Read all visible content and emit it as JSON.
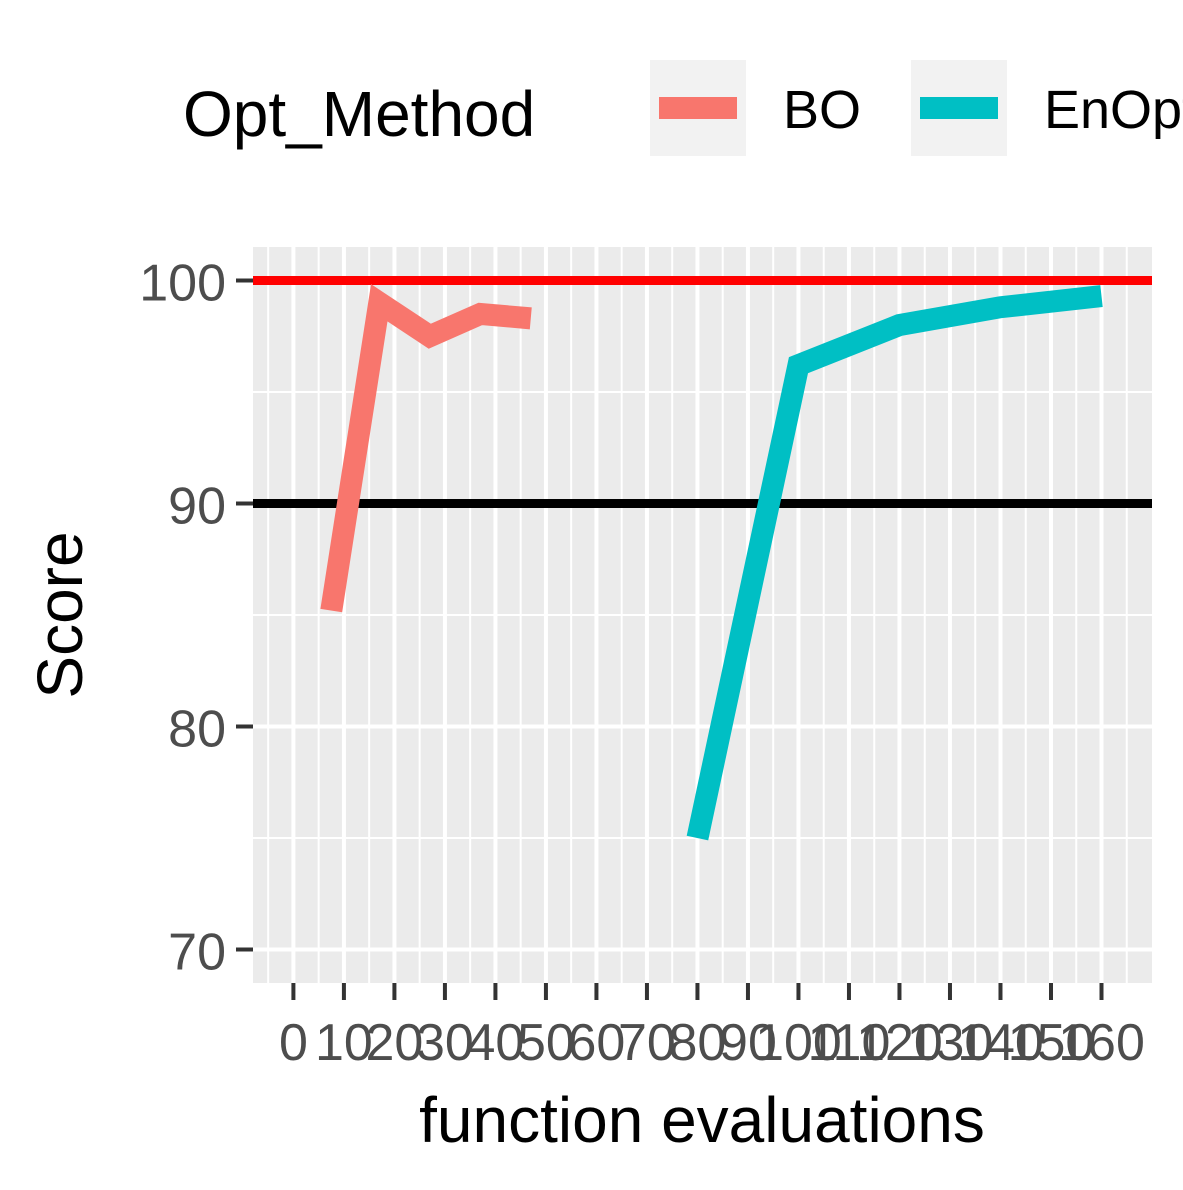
{
  "chart_data": {
    "type": "line",
    "title": "",
    "xlabel": "function evaluations",
    "ylabel": "Score",
    "xlim": [
      -8,
      170
    ],
    "ylim": [
      68.5,
      101.5
    ],
    "x_ticks": [
      0,
      10,
      20,
      30,
      40,
      50,
      60,
      70,
      80,
      90,
      100,
      110,
      120,
      130,
      140,
      150,
      160
    ],
    "x_tick_labels": [
      "0",
      "10",
      "20",
      "30",
      "40",
      "50",
      "60",
      "70",
      "80",
      "90",
      "100",
      "110",
      "120",
      "130",
      "140",
      "150",
      "160"
    ],
    "y_ticks": [
      70,
      80,
      90,
      100
    ],
    "y_tick_labels": [
      "70",
      "80",
      "90",
      "100"
    ],
    "grid": true,
    "legend": {
      "title": "Opt_Method",
      "position": "top",
      "entries": [
        "BO",
        "EnOpt"
      ]
    },
    "series": [
      {
        "name": "BO",
        "color": "#F8766D",
        "x": [
          7.5,
          17,
          27,
          37,
          47
        ],
        "y": [
          85.2,
          99.0,
          97.5,
          98.5,
          98.3
        ]
      },
      {
        "name": "EnOpt",
        "color": "#00BFC4",
        "x": [
          80,
          100,
          120,
          140,
          160
        ],
        "y": [
          75.0,
          96.2,
          98.0,
          98.8,
          99.3
        ]
      }
    ],
    "reference_lines": [
      {
        "y": 100,
        "color": "#FF0000"
      },
      {
        "y": 90,
        "color": "#000000"
      }
    ],
    "colors": {
      "panel_background": "#EBEBEB",
      "grid": "#FFFFFF",
      "legend_key_background": "#F2F2F2",
      "tick_text": "#4D4D4D"
    }
  }
}
